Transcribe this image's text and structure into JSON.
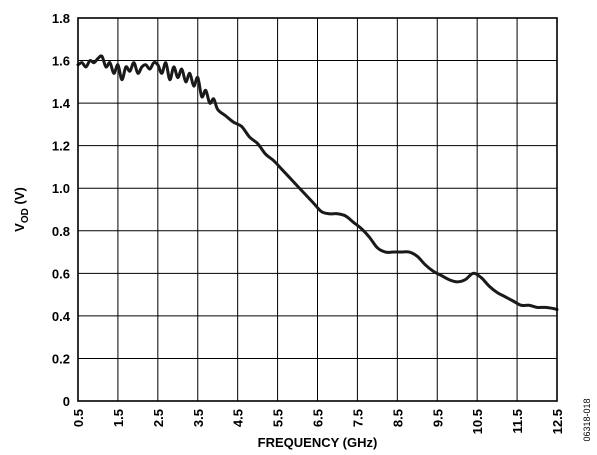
{
  "chart_data": {
    "type": "line",
    "title": "",
    "xlabel": "FREQUENCY (GHz)",
    "ylabel_main": "V",
    "ylabel_sub": "OD",
    "ylabel_unit": " (V)",
    "xlim": [
      0.5,
      12.5
    ],
    "ylim": [
      0,
      1.8
    ],
    "x_ticks": [
      0.5,
      1.5,
      2.5,
      3.5,
      4.5,
      5.5,
      6.5,
      7.5,
      8.5,
      9.5,
      10.5,
      11.5,
      12.5
    ],
    "x_tick_labels": [
      "0.5",
      "1.5",
      "2.5",
      "3.5",
      "4.5",
      "5.5",
      "6.5",
      "7.5",
      "8.5",
      "9.5",
      "10.5",
      "11.5",
      "12.5"
    ],
    "y_ticks": [
      0,
      0.2,
      0.4,
      0.6,
      0.8,
      1.0,
      1.2,
      1.4,
      1.6,
      1.8
    ],
    "y_tick_labels": [
      "0",
      "0.2",
      "0.4",
      "0.6",
      "0.8",
      "1.0",
      "1.2",
      "1.4",
      "1.6",
      "1.8"
    ],
    "grid": true,
    "line_color": "#1a1a1a",
    "series": [
      {
        "x": [
          0.5,
          0.6,
          0.7,
          0.8,
          0.9,
          1.0,
          1.1,
          1.2,
          1.3,
          1.4,
          1.5,
          1.6,
          1.7,
          1.8,
          1.9,
          2.0,
          2.1,
          2.2,
          2.3,
          2.4,
          2.5,
          2.6,
          2.7,
          2.8,
          2.9,
          3.0,
          3.1,
          3.2,
          3.3,
          3.4,
          3.5,
          3.6,
          3.7,
          3.8,
          3.9,
          4.0,
          4.2,
          4.4,
          4.6,
          4.8,
          5.0,
          5.2,
          5.4,
          5.6,
          5.8,
          6.0,
          6.2,
          6.4,
          6.6,
          6.8,
          7.0,
          7.2,
          7.4,
          7.6,
          7.8,
          8.0,
          8.2,
          8.4,
          8.6,
          8.8,
          9.0,
          9.2,
          9.4,
          9.6,
          9.8,
          10.0,
          10.2,
          10.4,
          10.6,
          10.8,
          11.0,
          11.2,
          11.4,
          11.6,
          11.8,
          12.0,
          12.2,
          12.4,
          12.5
        ],
        "y": [
          1.58,
          1.59,
          1.57,
          1.6,
          1.59,
          1.61,
          1.62,
          1.57,
          1.59,
          1.54,
          1.58,
          1.51,
          1.57,
          1.55,
          1.59,
          1.54,
          1.57,
          1.58,
          1.56,
          1.59,
          1.58,
          1.54,
          1.59,
          1.51,
          1.57,
          1.52,
          1.56,
          1.5,
          1.54,
          1.48,
          1.52,
          1.43,
          1.46,
          1.4,
          1.42,
          1.37,
          1.34,
          1.31,
          1.29,
          1.24,
          1.21,
          1.16,
          1.13,
          1.09,
          1.05,
          1.01,
          0.97,
          0.93,
          0.89,
          0.88,
          0.88,
          0.87,
          0.84,
          0.81,
          0.77,
          0.72,
          0.7,
          0.7,
          0.7,
          0.7,
          0.68,
          0.64,
          0.61,
          0.59,
          0.57,
          0.56,
          0.57,
          0.6,
          0.58,
          0.54,
          0.51,
          0.49,
          0.47,
          0.45,
          0.45,
          0.44,
          0.44,
          0.435,
          0.43
        ]
      }
    ]
  },
  "figure_id": "06318-018"
}
